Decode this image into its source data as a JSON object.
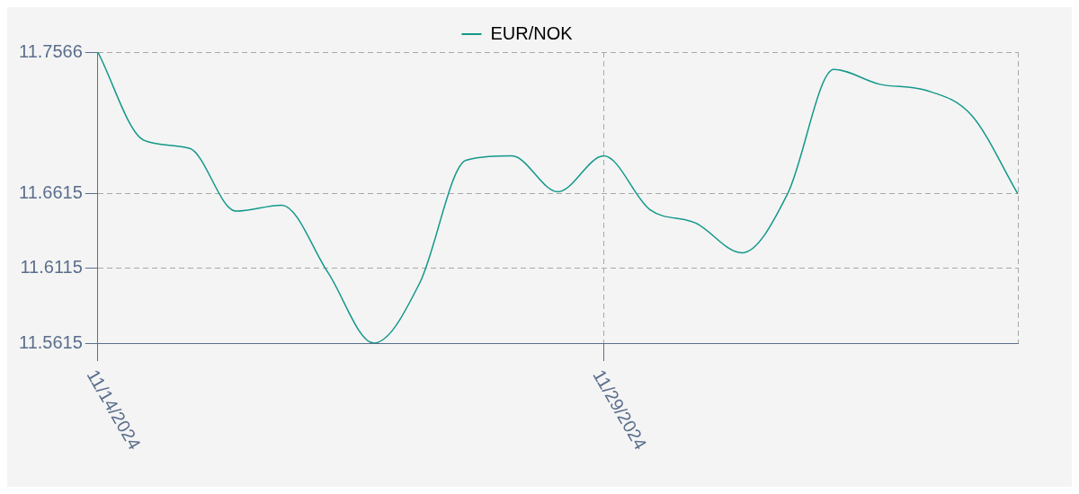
{
  "chart_data": {
    "type": "line",
    "categories": [
      "11/14/2024",
      null,
      null,
      null,
      null,
      null,
      null,
      null,
      null,
      null,
      null,
      "11/29/2024",
      null,
      null,
      null,
      null,
      null,
      null,
      null,
      null,
      null
    ],
    "series": [
      {
        "name": "EUR/NOK",
        "color": "#13988a",
        "values": [
          11.7566,
          11.6975,
          11.692,
          11.65,
          11.654,
          11.609,
          11.5615,
          11.602,
          11.684,
          11.687,
          11.663,
          11.687,
          11.651,
          11.642,
          11.622,
          11.662,
          11.745,
          11.735,
          11.731,
          11.714,
          11.6615
        ]
      }
    ],
    "ylim": [
      11.5615,
      11.7566
    ],
    "yticks": [
      11.5615,
      11.6115,
      11.6615,
      11.7566
    ],
    "grid": true,
    "legend": "top",
    "marker": "none",
    "line_style": "solid"
  }
}
